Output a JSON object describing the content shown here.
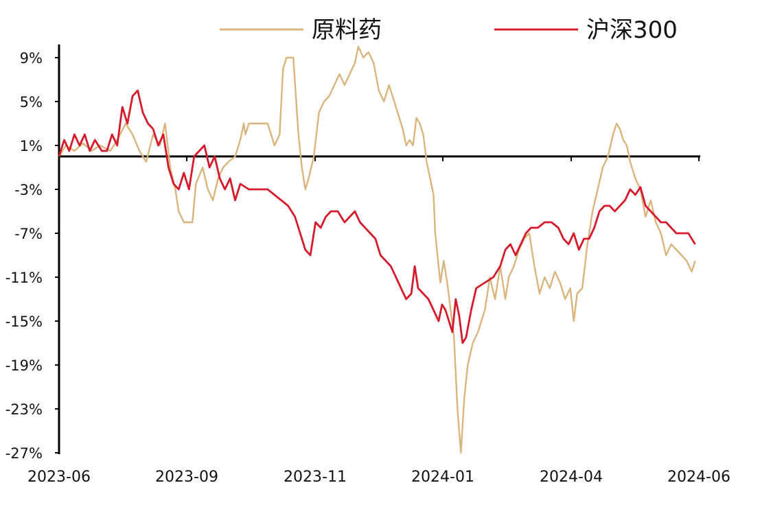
{
  "chart_data": {
    "type": "line",
    "title": "",
    "xlabel": "",
    "ylabel": "",
    "ylim": [
      -27,
      11
    ],
    "yticks": [
      9,
      5,
      1,
      -3,
      -7,
      -11,
      -15,
      -19,
      -23,
      -27
    ],
    "ytick_labels": [
      "9%",
      "5%",
      "1%",
      "-3%",
      "-7%",
      "-11%",
      "-15%",
      "-19%",
      "-23%",
      "-27%"
    ],
    "xlim": [
      "2023-06-01",
      "2024-06-10"
    ],
    "xticks": [
      "2023-06-01",
      "2023-09-01",
      "2023-11-01",
      "2024-01-01",
      "2024-04-01",
      "2024-06-01"
    ],
    "xtick_labels": [
      "2023-06",
      "2023-09",
      "2023-11",
      "2024-01",
      "2024-04",
      "2024-06"
    ],
    "grid": false,
    "legend_position": "top",
    "series": [
      {
        "name": "原料药",
        "color": "#D9B47C",
        "points": [
          [
            "2023-06-01",
            0.0
          ],
          [
            "2023-06-05",
            1.0
          ],
          [
            "2023-06-10",
            0.5
          ],
          [
            "2023-06-15",
            1.2
          ],
          [
            "2023-06-20",
            0.5
          ],
          [
            "2023-06-25",
            1.0
          ],
          [
            "2023-07-01",
            0.5
          ],
          [
            "2023-07-05",
            1.5
          ],
          [
            "2023-07-10",
            3.0
          ],
          [
            "2023-07-14",
            2.0
          ],
          [
            "2023-07-18",
            0.5
          ],
          [
            "2023-07-22",
            -0.5
          ],
          [
            "2023-07-26",
            2.0
          ],
          [
            "2023-07-30",
            1.0
          ],
          [
            "2023-08-02",
            3.0
          ],
          [
            "2023-08-05",
            -1.0
          ],
          [
            "2023-08-08",
            -3.0
          ],
          [
            "2023-08-10",
            -5.0
          ],
          [
            "2023-08-13",
            -6.0
          ],
          [
            "2023-08-18",
            -6.0
          ],
          [
            "2023-08-20",
            -2.5
          ],
          [
            "2023-08-24",
            -1.0
          ],
          [
            "2023-08-27",
            -3.0
          ],
          [
            "2023-08-30",
            -4.0
          ],
          [
            "2023-09-02",
            -2.0
          ],
          [
            "2023-09-05",
            -1.0
          ],
          [
            "2023-09-08",
            -0.5
          ],
          [
            "2023-09-12",
            0.0
          ],
          [
            "2023-09-15",
            1.5
          ],
          [
            "2023-09-17",
            3.0
          ],
          [
            "2023-09-18",
            2.0
          ],
          [
            "2023-09-20",
            3.0
          ],
          [
            "2023-09-25",
            3.0
          ],
          [
            "2023-10-01",
            3.0
          ],
          [
            "2023-10-05",
            1.0
          ],
          [
            "2023-10-08",
            2.0
          ],
          [
            "2023-10-10",
            8.0
          ],
          [
            "2023-10-12",
            9.0
          ],
          [
            "2023-10-16",
            9.0
          ],
          [
            "2023-10-19",
            2.0
          ],
          [
            "2023-10-21",
            -1.0
          ],
          [
            "2023-10-23",
            -3.0
          ],
          [
            "2023-10-25",
            -2.0
          ],
          [
            "2023-10-28",
            0.0
          ],
          [
            "2023-10-31",
            4.0
          ],
          [
            "2023-11-03",
            5.0
          ],
          [
            "2023-11-06",
            5.5
          ],
          [
            "2023-11-09",
            6.5
          ],
          [
            "2023-11-12",
            7.5
          ],
          [
            "2023-11-15",
            6.5
          ],
          [
            "2023-11-18",
            7.5
          ],
          [
            "2023-11-21",
            8.5
          ],
          [
            "2023-11-23",
            10.0
          ],
          [
            "2023-11-26",
            9.0
          ],
          [
            "2023-11-29",
            9.5
          ],
          [
            "2023-12-02",
            8.5
          ],
          [
            "2023-12-05",
            6.0
          ],
          [
            "2023-12-08",
            5.0
          ],
          [
            "2023-12-11",
            6.5
          ],
          [
            "2023-12-13",
            5.5
          ],
          [
            "2023-12-16",
            4.0
          ],
          [
            "2023-12-19",
            2.5
          ],
          [
            "2023-12-21",
            1.0
          ],
          [
            "2023-12-23",
            1.5
          ],
          [
            "2023-12-25",
            1.0
          ],
          [
            "2023-12-27",
            3.5
          ],
          [
            "2023-12-29",
            3.0
          ],
          [
            "2023-12-31",
            2.0
          ],
          [
            "2024-01-02",
            -0.5
          ],
          [
            "2024-01-04",
            -2.0
          ],
          [
            "2024-01-06",
            -3.5
          ],
          [
            "2024-01-07",
            -7.0
          ],
          [
            "2024-01-09",
            -10.0
          ],
          [
            "2024-01-10",
            -11.5
          ],
          [
            "2024-01-12",
            -9.5
          ],
          [
            "2024-01-14",
            -11.5
          ],
          [
            "2024-01-16",
            -14.0
          ],
          [
            "2024-01-18",
            -16.5
          ],
          [
            "2024-01-20",
            -23.0
          ],
          [
            "2024-01-22",
            -27.0
          ],
          [
            "2024-01-24",
            -22.0
          ],
          [
            "2024-01-26",
            -19.0
          ],
          [
            "2024-01-29",
            -17.0
          ],
          [
            "2024-02-01",
            -16.0
          ],
          [
            "2024-02-05",
            -14.0
          ],
          [
            "2024-02-08",
            -11.0
          ],
          [
            "2024-02-11",
            -13.0
          ],
          [
            "2024-02-14",
            -10.0
          ],
          [
            "2024-02-17",
            -13.0
          ],
          [
            "2024-02-19",
            -11.0
          ],
          [
            "2024-02-22",
            -10.0
          ],
          [
            "2024-02-25",
            -8.5
          ],
          [
            "2024-02-28",
            -7.5
          ],
          [
            "2024-03-02",
            -7.0
          ],
          [
            "2024-03-05",
            -10.0
          ],
          [
            "2024-03-08",
            -12.5
          ],
          [
            "2024-03-11",
            -11.0
          ],
          [
            "2024-03-14",
            -12.0
          ],
          [
            "2024-03-17",
            -10.5
          ],
          [
            "2024-03-20",
            -11.5
          ],
          [
            "2024-03-23",
            -13.0
          ],
          [
            "2024-03-26",
            -12.0
          ],
          [
            "2024-03-28",
            -15.0
          ],
          [
            "2024-03-30",
            -12.5
          ],
          [
            "2024-04-02",
            -12.0
          ],
          [
            "2024-04-05",
            -8.0
          ],
          [
            "2024-04-08",
            -5.0
          ],
          [
            "2024-04-11",
            -3.0
          ],
          [
            "2024-04-14",
            -1.0
          ],
          [
            "2024-04-17",
            0.0
          ],
          [
            "2024-04-20",
            2.0
          ],
          [
            "2024-04-22",
            3.0
          ],
          [
            "2024-04-24",
            2.5
          ],
          [
            "2024-04-26",
            1.5
          ],
          [
            "2024-04-28",
            1.0
          ],
          [
            "2024-04-30",
            -0.5
          ],
          [
            "2024-05-03",
            -2.0
          ],
          [
            "2024-05-06",
            -3.0
          ],
          [
            "2024-05-09",
            -5.5
          ],
          [
            "2024-05-12",
            -4.0
          ],
          [
            "2024-05-15",
            -6.0
          ],
          [
            "2024-05-18",
            -7.0
          ],
          [
            "2024-05-21",
            -9.0
          ],
          [
            "2024-05-24",
            -8.0
          ],
          [
            "2024-05-27",
            -8.5
          ],
          [
            "2024-05-30",
            -9.0
          ],
          [
            "2024-06-02",
            -9.5
          ],
          [
            "2024-06-05",
            -10.5
          ],
          [
            "2024-06-07",
            -9.5
          ]
        ]
      },
      {
        "name": "沪深300",
        "color": "#D7192C",
        "points": [
          [
            "2023-06-01",
            0.0
          ],
          [
            "2023-06-04",
            1.5
          ],
          [
            "2023-06-07",
            0.5
          ],
          [
            "2023-06-10",
            2.0
          ],
          [
            "2023-06-13",
            1.0
          ],
          [
            "2023-06-16",
            2.0
          ],
          [
            "2023-06-19",
            0.5
          ],
          [
            "2023-06-22",
            1.5
          ],
          [
            "2023-06-26",
            0.5
          ],
          [
            "2023-06-29",
            0.5
          ],
          [
            "2023-07-02",
            2.0
          ],
          [
            "2023-07-05",
            1.0
          ],
          [
            "2023-07-08",
            4.5
          ],
          [
            "2023-07-11",
            3.0
          ],
          [
            "2023-07-14",
            5.5
          ],
          [
            "2023-07-17",
            6.0
          ],
          [
            "2023-07-20",
            4.0
          ],
          [
            "2023-07-23",
            3.0
          ],
          [
            "2023-07-26",
            2.5
          ],
          [
            "2023-07-29",
            1.0
          ],
          [
            "2023-08-01",
            2.0
          ],
          [
            "2023-08-04",
            -1.0
          ],
          [
            "2023-08-07",
            -2.5
          ],
          [
            "2023-08-10",
            -3.0
          ],
          [
            "2023-08-13",
            -1.5
          ],
          [
            "2023-08-16",
            -3.0
          ],
          [
            "2023-08-19",
            0.0
          ],
          [
            "2023-08-22",
            0.5
          ],
          [
            "2023-08-25",
            1.0
          ],
          [
            "2023-08-28",
            -1.0
          ],
          [
            "2023-08-31",
            0.0
          ],
          [
            "2023-09-03",
            -2.0
          ],
          [
            "2023-09-06",
            -3.0
          ],
          [
            "2023-09-09",
            -2.0
          ],
          [
            "2023-09-12",
            -4.0
          ],
          [
            "2023-09-15",
            -2.5
          ],
          [
            "2023-09-20",
            -3.0
          ],
          [
            "2023-09-25",
            -3.0
          ],
          [
            "2023-10-01",
            -3.0
          ],
          [
            "2023-10-05",
            -3.5
          ],
          [
            "2023-10-09",
            -4.0
          ],
          [
            "2023-10-13",
            -4.5
          ],
          [
            "2023-10-17",
            -5.5
          ],
          [
            "2023-10-20",
            -7.0
          ],
          [
            "2023-10-23",
            -8.5
          ],
          [
            "2023-10-26",
            -9.0
          ],
          [
            "2023-10-29",
            -6.0
          ],
          [
            "2023-11-01",
            -6.5
          ],
          [
            "2023-11-04",
            -5.5
          ],
          [
            "2023-11-07",
            -5.0
          ],
          [
            "2023-11-11",
            -5.0
          ],
          [
            "2023-11-15",
            -6.0
          ],
          [
            "2023-11-18",
            -5.5
          ],
          [
            "2023-11-21",
            -5.0
          ],
          [
            "2023-11-24",
            -6.0
          ],
          [
            "2023-11-27",
            -6.5
          ],
          [
            "2023-11-30",
            -7.0
          ],
          [
            "2023-12-03",
            -7.5
          ],
          [
            "2023-12-06",
            -9.0
          ],
          [
            "2023-12-09",
            -9.5
          ],
          [
            "2023-12-12",
            -10.0
          ],
          [
            "2023-12-15",
            -11.0
          ],
          [
            "2023-12-18",
            -12.0
          ],
          [
            "2023-12-21",
            -13.0
          ],
          [
            "2023-12-24",
            -12.5
          ],
          [
            "2023-12-26",
            -10.0
          ],
          [
            "2023-12-28",
            -12.0
          ],
          [
            "2023-12-31",
            -12.5
          ],
          [
            "2024-01-03",
            -13.0
          ],
          [
            "2024-01-06",
            -14.0
          ],
          [
            "2024-01-09",
            -15.0
          ],
          [
            "2024-01-11",
            -13.5
          ],
          [
            "2024-01-13",
            -14.0
          ],
          [
            "2024-01-15",
            -15.0
          ],
          [
            "2024-01-17",
            -16.0
          ],
          [
            "2024-01-19",
            -13.0
          ],
          [
            "2024-01-21",
            -14.5
          ],
          [
            "2024-01-23",
            -17.0
          ],
          [
            "2024-01-25",
            -16.5
          ],
          [
            "2024-01-28",
            -14.0
          ],
          [
            "2024-01-31",
            -12.0
          ],
          [
            "2024-02-05",
            -11.5
          ],
          [
            "2024-02-10",
            -11.0
          ],
          [
            "2024-02-14",
            -10.0
          ],
          [
            "2024-02-17",
            -8.5
          ],
          [
            "2024-02-20",
            -8.0
          ],
          [
            "2024-02-23",
            -9.0
          ],
          [
            "2024-02-26",
            -8.0
          ],
          [
            "2024-02-29",
            -7.0
          ],
          [
            "2024-03-03",
            -6.5
          ],
          [
            "2024-03-07",
            -6.5
          ],
          [
            "2024-03-11",
            -6.0
          ],
          [
            "2024-03-15",
            -6.0
          ],
          [
            "2024-03-19",
            -6.5
          ],
          [
            "2024-03-22",
            -7.5
          ],
          [
            "2024-03-25",
            -8.0
          ],
          [
            "2024-03-28",
            -7.0
          ],
          [
            "2024-03-31",
            -8.5
          ],
          [
            "2024-04-03",
            -7.5
          ],
          [
            "2024-04-06",
            -7.5
          ],
          [
            "2024-04-09",
            -6.5
          ],
          [
            "2024-04-12",
            -5.0
          ],
          [
            "2024-04-15",
            -4.5
          ],
          [
            "2024-04-18",
            -4.5
          ],
          [
            "2024-04-21",
            -5.0
          ],
          [
            "2024-04-24",
            -4.5
          ],
          [
            "2024-04-27",
            -4.0
          ],
          [
            "2024-04-30",
            -3.0
          ],
          [
            "2024-05-03",
            -3.5
          ],
          [
            "2024-05-06",
            -2.8
          ],
          [
            "2024-05-09",
            -4.5
          ],
          [
            "2024-05-12",
            -5.0
          ],
          [
            "2024-05-15",
            -5.5
          ],
          [
            "2024-05-18",
            -6.0
          ],
          [
            "2024-05-21",
            -6.0
          ],
          [
            "2024-05-24",
            -6.5
          ],
          [
            "2024-05-27",
            -7.0
          ],
          [
            "2024-05-30",
            -7.0
          ],
          [
            "2024-06-03",
            -7.0
          ],
          [
            "2024-06-07",
            -8.0
          ]
        ]
      }
    ]
  }
}
